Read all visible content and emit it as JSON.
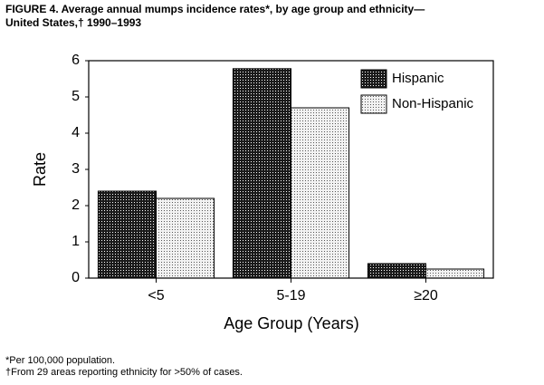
{
  "chart_data": {
    "type": "bar",
    "title": [
      "FIGURE 4. Average annual mumps incidence rates*, by age group and ethnicity—",
      "United States,† 1990–1993"
    ],
    "categories": [
      "<5",
      "5-19",
      "≥20"
    ],
    "series": [
      {
        "name": "Hispanic",
        "color": "#1a1a1a",
        "values": [
          2.4,
          5.78,
          0.4
        ]
      },
      {
        "name": "Non-Hispanic",
        "color": "#f2f2f2",
        "values": [
          2.2,
          4.7,
          0.25
        ]
      }
    ],
    "x_label": "Age Group (Years)",
    "y_label": "Rate",
    "ylim": [
      0,
      6
    ],
    "yticks": [
      0,
      1,
      2,
      3,
      4,
      5,
      6
    ],
    "legend": "top-right",
    "footnotes": [
      "*Per 100,000 population.",
      "†From 29 areas reporting ethnicity for >50% of cases."
    ]
  }
}
